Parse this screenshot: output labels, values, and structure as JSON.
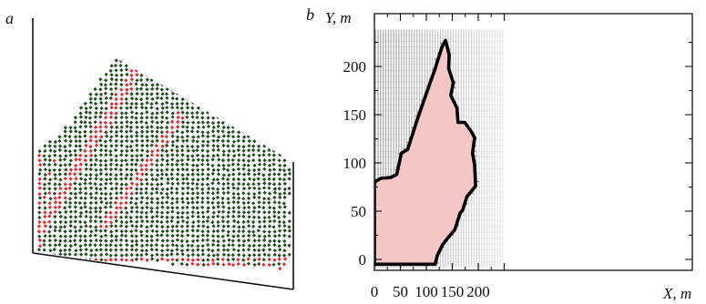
{
  "figure": {
    "panel_a_label": "a",
    "panel_b_label": "b"
  },
  "chart_data": {
    "type": "scatter",
    "title": "",
    "xlabel": "X, m",
    "ylabel": "Y, m",
    "xlim": [
      0,
      250
    ],
    "ylim": [
      -10,
      235
    ],
    "xticks": [
      0,
      50,
      100,
      150,
      200
    ],
    "yticks": [
      0,
      50,
      100,
      150,
      200
    ],
    "xtick_labels": [
      "0",
      "50",
      "100",
      "150",
      "200"
    ],
    "ytick_labels": [
      "0",
      "50",
      "100",
      "150",
      "200"
    ],
    "outline_color": "#000000",
    "fill_color": "#f4c6c6",
    "boundary": [
      {
        "x": 0,
        "y": 80
      },
      {
        "x": 12,
        "y": 84
      },
      {
        "x": 32,
        "y": 85
      },
      {
        "x": 43,
        "y": 88
      },
      {
        "x": 52,
        "y": 110
      },
      {
        "x": 64,
        "y": 114
      },
      {
        "x": 82,
        "y": 144
      },
      {
        "x": 98,
        "y": 169
      },
      {
        "x": 106,
        "y": 181
      },
      {
        "x": 116,
        "y": 196
      },
      {
        "x": 130,
        "y": 220
      },
      {
        "x": 137,
        "y": 227
      },
      {
        "x": 144,
        "y": 212
      },
      {
        "x": 143,
        "y": 198
      },
      {
        "x": 152,
        "y": 183
      },
      {
        "x": 147,
        "y": 170
      },
      {
        "x": 159,
        "y": 157
      },
      {
        "x": 161,
        "y": 142
      },
      {
        "x": 174,
        "y": 142
      },
      {
        "x": 186,
        "y": 133
      },
      {
        "x": 193,
        "y": 126
      },
      {
        "x": 189,
        "y": 110
      },
      {
        "x": 193,
        "y": 98
      },
      {
        "x": 195,
        "y": 76
      },
      {
        "x": 178,
        "y": 65
      },
      {
        "x": 170,
        "y": 51
      },
      {
        "x": 165,
        "y": 48
      },
      {
        "x": 155,
        "y": 31
      },
      {
        "x": 138,
        "y": 20
      },
      {
        "x": 131,
        "y": 15
      },
      {
        "x": 121,
        "y": 4
      },
      {
        "x": 117,
        "y": -5
      },
      {
        "x": 55,
        "y": -5
      },
      {
        "x": 0,
        "y": -5
      }
    ]
  }
}
